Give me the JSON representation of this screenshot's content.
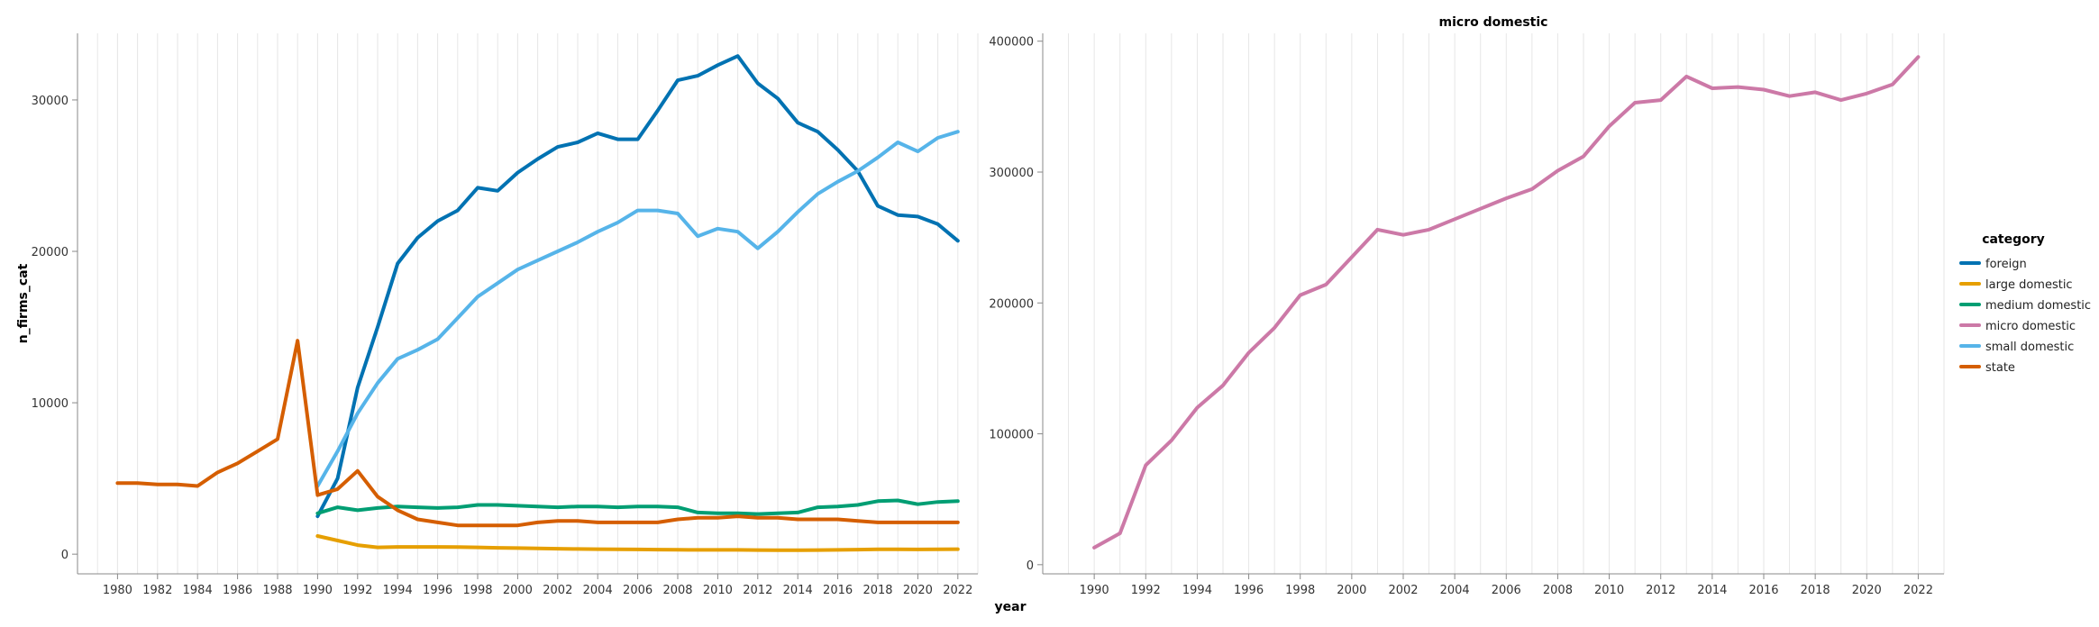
{
  "chart_data": [
    {
      "type": "line",
      "title": "",
      "xlabel": "year",
      "ylabel": "n_firms_cat",
      "xlim": [
        1978,
        2023
      ],
      "ylim": [
        -1300,
        34400
      ],
      "x_ticks": [
        1980,
        1982,
        1984,
        1986,
        1988,
        1990,
        1992,
        1994,
        1996,
        1998,
        2000,
        2002,
        2004,
        2006,
        2008,
        2010,
        2012,
        2014,
        2016,
        2018,
        2020,
        2022
      ],
      "y_ticks": [
        0,
        10000,
        20000,
        30000
      ],
      "grid": "vertical",
      "series": [
        {
          "name": "foreign",
          "color": "#0072B2",
          "x": [
            1990,
            1991,
            1992,
            1993,
            1994,
            1995,
            1996,
            1997,
            1998,
            1999,
            2000,
            2001,
            2002,
            2003,
            2004,
            2005,
            2006,
            2007,
            2008,
            2009,
            2010,
            2011,
            2012,
            2013,
            2014,
            2015,
            2016,
            2017,
            2018,
            2019,
            2020,
            2021,
            2022
          ],
          "y": [
            2500,
            5000,
            11000,
            15000,
            19200,
            20900,
            22000,
            22700,
            24200,
            24000,
            25200,
            26100,
            26900,
            27200,
            27800,
            27400,
            27400,
            29300,
            31300,
            31600,
            32300,
            32900,
            31100,
            30100,
            28500,
            27900,
            26700,
            25300,
            23000,
            22400,
            22300,
            21800,
            20700
          ]
        },
        {
          "name": "large domestic",
          "color": "#E69F00",
          "x": [
            1990,
            1991,
            1992,
            1993,
            1994,
            1995,
            1996,
            1997,
            1998,
            1999,
            2000,
            2001,
            2002,
            2003,
            2004,
            2005,
            2006,
            2007,
            2008,
            2009,
            2010,
            2011,
            2012,
            2013,
            2014,
            2015,
            2016,
            2017,
            2018,
            2019,
            2020,
            2021,
            2022
          ],
          "y": [
            1200,
            900,
            600,
            450,
            480,
            480,
            480,
            470,
            450,
            420,
            400,
            380,
            360,
            340,
            330,
            320,
            310,
            300,
            290,
            280,
            280,
            280,
            270,
            260,
            260,
            270,
            280,
            300,
            320,
            320,
            310,
            320,
            330
          ]
        },
        {
          "name": "medium domestic",
          "color": "#009E73",
          "x": [
            1990,
            1991,
            1992,
            1993,
            1994,
            1995,
            1996,
            1997,
            1998,
            1999,
            2000,
            2001,
            2002,
            2003,
            2004,
            2005,
            2006,
            2007,
            2008,
            2009,
            2010,
            2011,
            2012,
            2013,
            2014,
            2015,
            2016,
            2017,
            2018,
            2019,
            2020,
            2021,
            2022
          ],
          "y": [
            2700,
            3100,
            2900,
            3050,
            3150,
            3100,
            3050,
            3100,
            3250,
            3250,
            3200,
            3150,
            3100,
            3150,
            3150,
            3100,
            3150,
            3150,
            3100,
            2750,
            2700,
            2700,
            2650,
            2700,
            2750,
            3100,
            3150,
            3250,
            3500,
            3550,
            3300,
            3450,
            3500
          ]
        },
        {
          "name": "micro domestic",
          "color": "#CC79A7",
          "panel": 1
        },
        {
          "name": "small domestic",
          "color": "#56B4E9",
          "x": [
            1990,
            1991,
            1992,
            1993,
            1994,
            1995,
            1996,
            1997,
            1998,
            1999,
            2000,
            2001,
            2002,
            2003,
            2004,
            2005,
            2006,
            2007,
            2008,
            2009,
            2010,
            2011,
            2012,
            2013,
            2014,
            2015,
            2016,
            2017,
            2018,
            2019,
            2020,
            2021,
            2022
          ],
          "y": [
            4500,
            6800,
            9300,
            11300,
            12900,
            13500,
            14200,
            15600,
            17000,
            17900,
            18800,
            19400,
            20000,
            20600,
            21300,
            21900,
            22700,
            22700,
            22500,
            21000,
            21500,
            21300,
            20200,
            21300,
            22600,
            23800,
            24600,
            25300,
            26200,
            27200,
            26600,
            27500,
            27900
          ]
        },
        {
          "name": "state",
          "color": "#D55E00",
          "x": [
            1980,
            1981,
            1982,
            1983,
            1984,
            1985,
            1986,
            1987,
            1988,
            1989,
            1990,
            1991,
            1992,
            1993,
            1994,
            1995,
            1996,
            1997,
            1998,
            1999,
            2000,
            2001,
            2002,
            2003,
            2004,
            2005,
            2006,
            2007,
            2008,
            2009,
            2010,
            2011,
            2012,
            2013,
            2014,
            2015,
            2016,
            2017,
            2018,
            2019,
            2020,
            2021,
            2022
          ],
          "y": [
            4700,
            4700,
            4600,
            4600,
            4500,
            5400,
            6000,
            6800,
            7600,
            14100,
            3900,
            4300,
            5500,
            3800,
            2900,
            2300,
            2100,
            1900,
            1900,
            1900,
            1900,
            2100,
            2200,
            2200,
            2100,
            2100,
            2100,
            2100,
            2300,
            2400,
            2400,
            2500,
            2400,
            2400,
            2300,
            2300,
            2300,
            2200,
            2100,
            2100,
            2100,
            2100,
            2100
          ]
        }
      ]
    },
    {
      "type": "line",
      "title": "micro domestic",
      "xlabel": "",
      "ylabel": "",
      "xlim": [
        1988,
        2023
      ],
      "ylim": [
        -7000,
        406000
      ],
      "x_ticks": [
        1990,
        1992,
        1994,
        1996,
        1998,
        2000,
        2002,
        2004,
        2006,
        2008,
        2010,
        2012,
        2014,
        2016,
        2018,
        2020,
        2022
      ],
      "y_ticks": [
        0,
        100000,
        200000,
        300000,
        400000
      ],
      "grid": "vertical",
      "series": [
        {
          "name": "micro domestic",
          "color": "#CC79A7",
          "x": [
            1990,
            1991,
            1992,
            1993,
            1994,
            1995,
            1996,
            1997,
            1998,
            1999,
            2000,
            2001,
            2002,
            2003,
            2004,
            2005,
            2006,
            2007,
            2008,
            2009,
            2010,
            2011,
            2012,
            2013,
            2014,
            2015,
            2016,
            2017,
            2018,
            2019,
            2020,
            2021,
            2022
          ],
          "y": [
            13000,
            24000,
            76000,
            95000,
            120000,
            137000,
            162000,
            181000,
            206000,
            214000,
            235000,
            256000,
            252000,
            256000,
            264000,
            272000,
            280000,
            287000,
            301000,
            312000,
            335000,
            353000,
            355000,
            373000,
            364000,
            365000,
            363000,
            358000,
            361000,
            355000,
            360000,
            367000,
            388000
          ]
        }
      ]
    }
  ],
  "legend": {
    "title": "category",
    "placement": "right",
    "items": [
      {
        "label": "foreign",
        "color": "#0072B2"
      },
      {
        "label": "large domestic",
        "color": "#E69F00"
      },
      {
        "label": "medium domestic",
        "color": "#009E73"
      },
      {
        "label": "micro domestic",
        "color": "#CC79A7"
      },
      {
        "label": "small domestic",
        "color": "#56B4E9"
      },
      {
        "label": "state",
        "color": "#D55E00"
      }
    ]
  }
}
